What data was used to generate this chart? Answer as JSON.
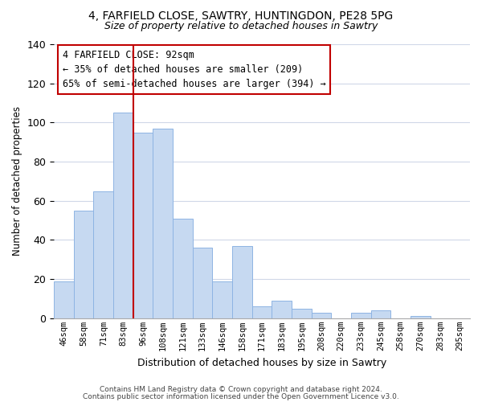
{
  "title1": "4, FARFIELD CLOSE, SAWTRY, HUNTINGDON, PE28 5PG",
  "title2": "Size of property relative to detached houses in Sawtry",
  "xlabel": "Distribution of detached houses by size in Sawtry",
  "ylabel": "Number of detached properties",
  "categories": [
    "46sqm",
    "58sqm",
    "71sqm",
    "83sqm",
    "96sqm",
    "108sqm",
    "121sqm",
    "133sqm",
    "146sqm",
    "158sqm",
    "171sqm",
    "183sqm",
    "195sqm",
    "208sqm",
    "220sqm",
    "233sqm",
    "245sqm",
    "258sqm",
    "270sqm",
    "283sqm",
    "295sqm"
  ],
  "values": [
    19,
    55,
    65,
    105,
    95,
    97,
    51,
    36,
    19,
    37,
    6,
    9,
    5,
    3,
    0,
    3,
    4,
    0,
    1,
    0,
    0
  ],
  "bar_color": "#c6d9f1",
  "bar_edge_color": "#8eb4e3",
  "vline_color": "#c00000",
  "vline_x": 3.5,
  "annotation_title": "4 FARFIELD CLOSE: 92sqm",
  "annotation_line1": "← 35% of detached houses are smaller (209)",
  "annotation_line2": "65% of semi-detached houses are larger (394) →",
  "annotation_box_color": "#ffffff",
  "annotation_box_edge": "#c00000",
  "ylim": [
    0,
    140
  ],
  "yticks": [
    0,
    20,
    40,
    60,
    80,
    100,
    120,
    140
  ],
  "footer1": "Contains HM Land Registry data © Crown copyright and database right 2024.",
  "footer2": "Contains public sector information licensed under the Open Government Licence v3.0.",
  "bg_color": "#ffffff",
  "grid_color": "#d0d8e8"
}
